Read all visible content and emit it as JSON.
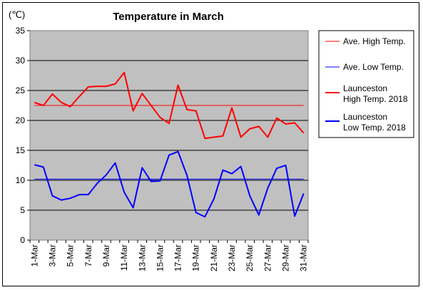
{
  "chart_data": {
    "type": "line",
    "title": "Temperature in March",
    "unit_label": "(℃)",
    "ylim": [
      0,
      35
    ],
    "yticks": [
      0,
      5,
      10,
      15,
      20,
      25,
      30,
      35
    ],
    "xticks": [
      "1-Mar",
      "3-Mar",
      "5-Mar",
      "7-Mar",
      "9-Mar",
      "11-Mar",
      "13-Mar",
      "15-Mar",
      "17-Mar",
      "19-Mar",
      "21-Mar",
      "23-Mar",
      "25-Mar",
      "27-Mar",
      "29-Mar",
      "31-Mar"
    ],
    "days": [
      1,
      2,
      3,
      4,
      5,
      6,
      7,
      8,
      9,
      10,
      11,
      12,
      13,
      14,
      15,
      16,
      17,
      18,
      19,
      20,
      21,
      22,
      23,
      24,
      25,
      26,
      27,
      28,
      29,
      30,
      31
    ],
    "grid": "horizontal",
    "plot_background": "#c0c0c0",
    "legend_position": "right",
    "series": [
      {
        "name": "Ave. High Temp.",
        "color": "#ff0000",
        "style": "thin",
        "values": [
          22.5,
          22.5,
          22.5,
          22.5,
          22.5,
          22.5,
          22.5,
          22.5,
          22.5,
          22.5,
          22.5,
          22.5,
          22.5,
          22.5,
          22.5,
          22.5,
          22.5,
          22.5,
          22.5,
          22.5,
          22.5,
          22.5,
          22.5,
          22.5,
          22.5,
          22.5,
          22.5,
          22.5,
          22.5,
          22.5,
          22.5
        ]
      },
      {
        "name": "Ave. Low Temp.",
        "color": "#0000ff",
        "style": "thin",
        "values": [
          10.2,
          10.2,
          10.2,
          10.2,
          10.2,
          10.2,
          10.2,
          10.2,
          10.2,
          10.2,
          10.2,
          10.2,
          10.2,
          10.2,
          10.2,
          10.2,
          10.2,
          10.2,
          10.2,
          10.2,
          10.2,
          10.2,
          10.2,
          10.2,
          10.2,
          10.2,
          10.2,
          10.2,
          10.2,
          10.2,
          10.2
        ]
      },
      {
        "name": "Launceston High Temp. 2018",
        "name_lines": [
          "Launceston",
          "High Temp. 2018"
        ],
        "color": "#ff0000",
        "style": "thick",
        "values": [
          23.0,
          22.5,
          24.4,
          23.0,
          22.3,
          24.0,
          25.6,
          25.7,
          25.7,
          26.1,
          28.0,
          21.6,
          24.5,
          22.5,
          20.5,
          19.5,
          25.9,
          21.8,
          21.6,
          17.0,
          17.2,
          17.4,
          22.1,
          17.2,
          18.6,
          19.0,
          17.2,
          20.4,
          19.4,
          19.6,
          17.9
        ]
      },
      {
        "name": "Launceston Low Temp. 2018",
        "name_lines": [
          "Launceston",
          "Low Temp. 2018"
        ],
        "color": "#0000ff",
        "style": "thick",
        "values": [
          12.6,
          12.2,
          7.4,
          6.7,
          7.0,
          7.6,
          7.6,
          9.5,
          10.9,
          12.9,
          8.0,
          5.4,
          12.1,
          9.8,
          9.9,
          14.2,
          14.8,
          10.8,
          4.6,
          3.9,
          6.9,
          11.7,
          11.1,
          12.3,
          7.4,
          4.2,
          8.7,
          12.0,
          12.5,
          4.0,
          7.8
        ]
      }
    ]
  }
}
